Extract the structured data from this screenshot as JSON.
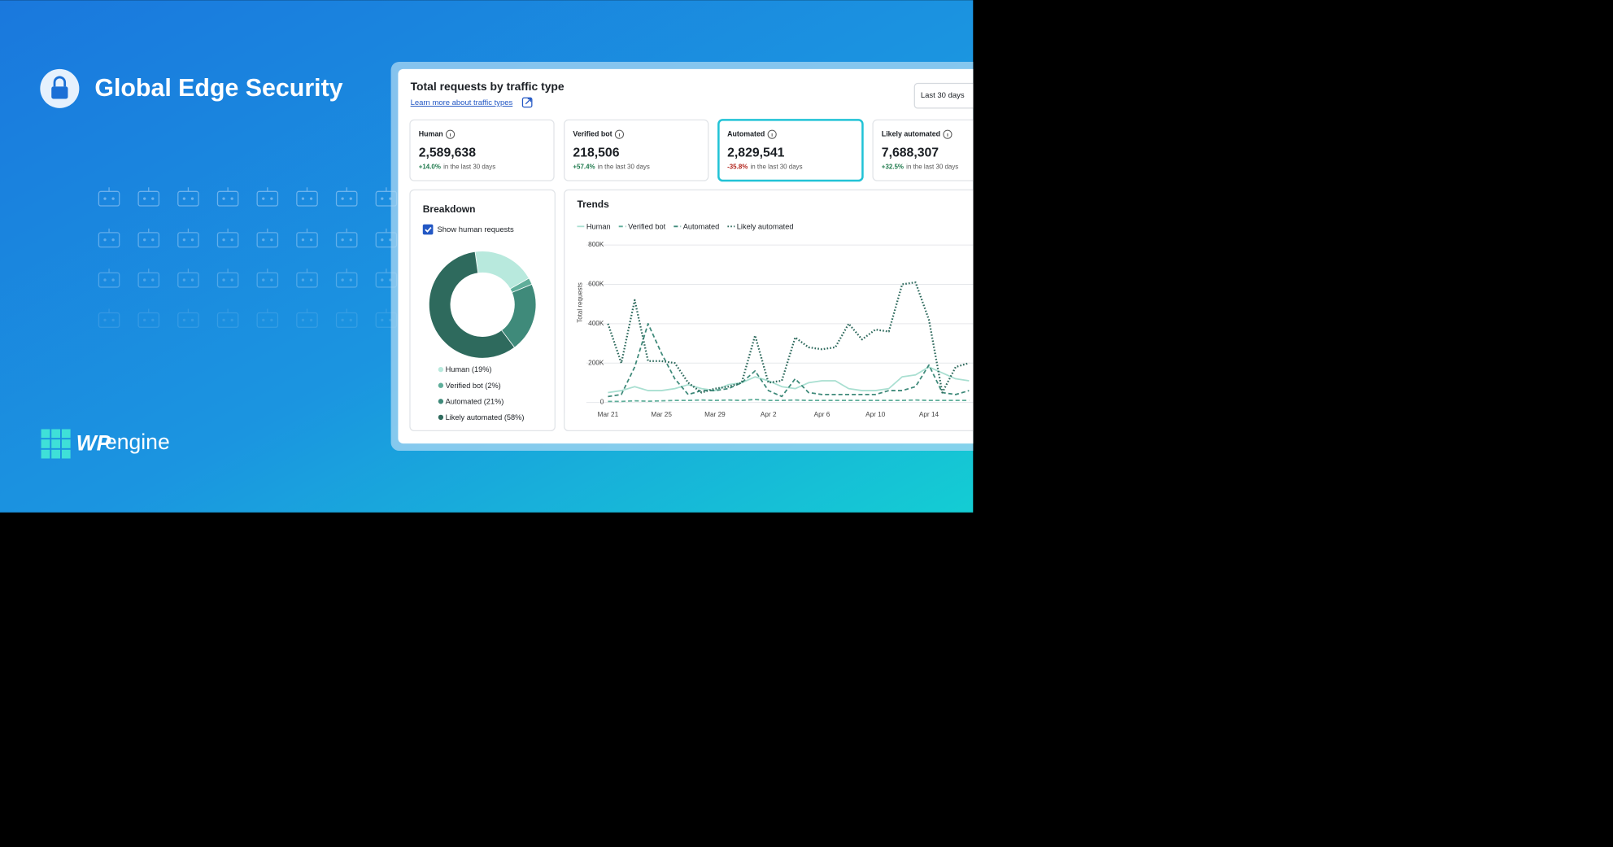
{
  "header": {
    "title": "Global Edge Security"
  },
  "brand": {
    "mark": "WP",
    "name": "engine"
  },
  "dashboard": {
    "title": "Total requests by traffic type",
    "link": "Learn more about traffic types",
    "range": "Last 30 days",
    "selected_card": 2,
    "cards": [
      {
        "label": "Human",
        "value": "2,589,638",
        "change": "+14.0%",
        "period": "in the last 30 days"
      },
      {
        "label": "Verified bot",
        "value": "218,506",
        "change": "+57.4%",
        "period": "in the last 30 days"
      },
      {
        "label": "Automated",
        "value": "2,829,541",
        "change": "-35.8%",
        "period": "in the last 30 days"
      },
      {
        "label": "Likely automated",
        "value": "7,688,307",
        "change": "+32.5%",
        "period": "in the last 30 days"
      }
    ],
    "breakdown": {
      "title": "Breakdown",
      "checkbox": "Show human requests"
    },
    "trends": {
      "title": "Trends"
    }
  },
  "chart_data": [
    {
      "type": "pie",
      "categories": [
        "Human (19%)",
        "Verified bot (2%)",
        "Automated (21%)",
        "Likely automated (58%)"
      ],
      "values": [
        19,
        2,
        21,
        58
      ],
      "colors": [
        "#b8e9dd",
        "#5fae9a",
        "#3f8a7a",
        "#2e6a5d"
      ],
      "donut": true
    },
    {
      "type": "line",
      "y_label": "Total requests",
      "categories": [
        "Mar 21",
        null,
        null,
        null,
        "Mar 25",
        null,
        null,
        null,
        "Mar 29",
        null,
        null,
        null,
        "Apr 2",
        null,
        null,
        null,
        "Apr 6",
        null,
        null,
        null,
        "Apr 10",
        null,
        null,
        null,
        "Apr 14",
        null,
        null,
        null
      ],
      "ylim": [
        0,
        800000
      ],
      "yticks": [
        0,
        {
          "value": 200000,
          "label": "200K"
        },
        {
          "value": 400000,
          "label": "400K"
        },
        {
          "value": 600000,
          "label": "600K"
        },
        {
          "value": 800000,
          "label": "800K"
        }
      ],
      "grid": true,
      "series": [
        {
          "name": "Human",
          "color": "#a9dfd1",
          "dash": "solid",
          "values": [
            50000,
            60000,
            80000,
            60000,
            60000,
            70000,
            90000,
            70000,
            60000,
            90000,
            100000,
            130000,
            110000,
            80000,
            70000,
            100000,
            110000,
            110000,
            70000,
            60000,
            60000,
            70000,
            130000,
            140000,
            180000,
            150000,
            120000,
            110000
          ]
        },
        {
          "name": "Verified bot",
          "color": "#5fae9a",
          "dash": "dashed",
          "values": [
            5000,
            5000,
            8000,
            6000,
            8000,
            10000,
            10000,
            12000,
            10000,
            12000,
            10000,
            15000,
            10000,
            10000,
            12000,
            10000,
            10000,
            10000,
            10000,
            10000,
            10000,
            10000,
            10000,
            12000,
            10000,
            10000,
            10000,
            10000
          ]
        },
        {
          "name": "Automated",
          "color": "#3f8a7a",
          "dash": "dashed",
          "values": [
            30000,
            40000,
            180000,
            400000,
            250000,
            120000,
            40000,
            60000,
            60000,
            70000,
            100000,
            160000,
            60000,
            30000,
            120000,
            50000,
            40000,
            40000,
            40000,
            40000,
            40000,
            60000,
            60000,
            80000,
            190000,
            50000,
            40000,
            60000
          ]
        },
        {
          "name": "Likely automated",
          "color": "#2e6a5d",
          "dash": "dotted",
          "values": [
            400000,
            200000,
            520000,
            210000,
            210000,
            200000,
            100000,
            50000,
            70000,
            80000,
            100000,
            340000,
            100000,
            110000,
            330000,
            280000,
            270000,
            280000,
            400000,
            320000,
            370000,
            360000,
            600000,
            610000,
            420000,
            50000,
            180000,
            200000
          ]
        }
      ]
    }
  ]
}
